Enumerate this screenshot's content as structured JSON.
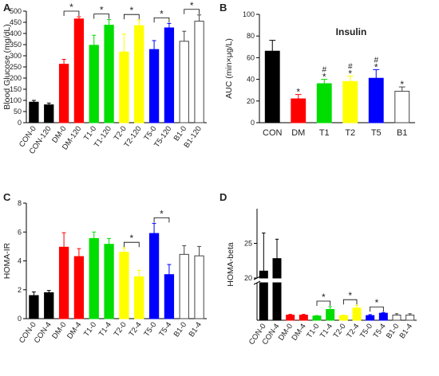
{
  "figure": {
    "panel_letters": [
      "A",
      "B",
      "C",
      "D"
    ]
  },
  "colors": {
    "black": "#000000",
    "red": "#ff0000",
    "green": "#00dd00",
    "yellow": "#ffff00",
    "blue": "#0000ff",
    "white": "#ffffff"
  },
  "chart_data": [
    {
      "panel": "A",
      "type": "bar",
      "title": "",
      "ylabel": "Blood Glucose (mg/dL)",
      "ylim": [
        0,
        500
      ],
      "yticks": [
        0,
        50,
        100,
        150,
        200,
        250,
        300,
        350,
        400,
        450,
        500
      ],
      "categories": [
        "CON-0",
        "CON-120",
        "DM-0",
        "DM-120",
        "T1-0",
        "T1-120",
        "T2-0",
        "T2-120",
        "T5-0",
        "T5-120",
        "B1-0",
        "B1-120"
      ],
      "values": [
        92,
        80,
        262,
        465,
        347,
        437,
        317,
        435,
        328,
        425,
        365,
        455
      ],
      "errors": [
        8,
        8,
        22,
        10,
        45,
        25,
        80,
        25,
        40,
        20,
        45,
        28
      ],
      "bar_colors": [
        "black",
        "black",
        "red",
        "red",
        "green",
        "green",
        "yellow",
        "yellow",
        "blue",
        "blue",
        "white",
        "white"
      ],
      "significance": [
        {
          "pair": [
            2,
            3
          ],
          "label": "*"
        },
        {
          "pair": [
            4,
            5
          ],
          "label": "*"
        },
        {
          "pair": [
            6,
            7
          ],
          "label": "*"
        },
        {
          "pair": [
            8,
            9
          ],
          "label": "*"
        },
        {
          "pair": [
            10,
            11
          ],
          "label": "*"
        }
      ]
    },
    {
      "panel": "B",
      "type": "bar",
      "title": "Insulin",
      "ylabel": "AUC (min×μg/L)",
      "ylim": [
        0,
        100
      ],
      "yticks": [
        0,
        20,
        40,
        60,
        80,
        100
      ],
      "categories": [
        "CON",
        "DM",
        "T1",
        "T2",
        "T5",
        "B1"
      ],
      "values": [
        66,
        22,
        36,
        38,
        41,
        29
      ],
      "errors": [
        10,
        4,
        4,
        5,
        8,
        4
      ],
      "bar_colors": [
        "black",
        "red",
        "green",
        "yellow",
        "blue",
        "white"
      ],
      "annotations": [
        [
          "",
          "",
          ""
        ],
        [
          "*",
          "",
          ""
        ],
        [
          "*",
          "#",
          ""
        ],
        [
          "*",
          "#",
          ""
        ],
        [
          "*",
          "#",
          ""
        ],
        [
          "*",
          "",
          ""
        ]
      ]
    },
    {
      "panel": "C",
      "type": "bar",
      "title": "",
      "ylabel": "HOMA-IR",
      "ylim": [
        0,
        8
      ],
      "yticks": [
        0,
        2,
        4,
        6,
        8
      ],
      "categories": [
        "CON-0",
        "CON-4",
        "DM-0",
        "DM-4",
        "T1-0",
        "T1-4",
        "T2-0",
        "T2-4",
        "T5-0",
        "T5-4",
        "B1-0",
        "B1-4"
      ],
      "values": [
        1.6,
        1.8,
        4.95,
        4.3,
        5.55,
        5.15,
        4.6,
        2.9,
        5.9,
        3.05,
        4.45,
        4.35
      ],
      "errors": [
        0.25,
        0.15,
        1.0,
        0.55,
        0.45,
        0.4,
        0.3,
        0.45,
        0.7,
        0.7,
        0.6,
        0.65
      ],
      "bar_colors": [
        "black",
        "black",
        "red",
        "red",
        "green",
        "green",
        "yellow",
        "yellow",
        "blue",
        "blue",
        "white",
        "white"
      ],
      "significance": [
        {
          "pair": [
            6,
            7
          ],
          "label": "*"
        },
        {
          "pair": [
            8,
            9
          ],
          "label": "*"
        }
      ]
    },
    {
      "panel": "D",
      "type": "bar",
      "title": "",
      "ylabel": "HOMA-beta",
      "axis_break": {
        "lower": [
          0,
          4
        ],
        "upper": [
          20,
          30
        ]
      },
      "yticks_shown": [
        "20",
        "25"
      ],
      "categories": [
        "CON-0",
        "CON-4",
        "DM-0",
        "DM-4",
        "T1-0",
        "T1-4",
        "T2-0",
        "T2-4",
        "T5-0",
        "T5-4",
        "B1-0",
        "B1-4"
      ],
      "values": [
        21,
        22.8,
        0.55,
        0.55,
        0.45,
        1.15,
        0.5,
        1.3,
        0.5,
        0.75,
        0.55,
        0.55
      ],
      "errors": [
        5.5,
        2.8,
        0.08,
        0.08,
        0.05,
        0.3,
        0.05,
        0.3,
        0.1,
        0.08,
        0.15,
        0.15
      ],
      "bar_colors": [
        "black",
        "black",
        "red",
        "red",
        "green",
        "green",
        "yellow",
        "yellow",
        "blue",
        "blue",
        "white",
        "white"
      ],
      "significance": [
        {
          "pair": [
            4,
            5
          ],
          "label": "*"
        },
        {
          "pair": [
            6,
            7
          ],
          "label": "*"
        },
        {
          "pair": [
            8,
            9
          ],
          "label": "*"
        }
      ]
    }
  ]
}
